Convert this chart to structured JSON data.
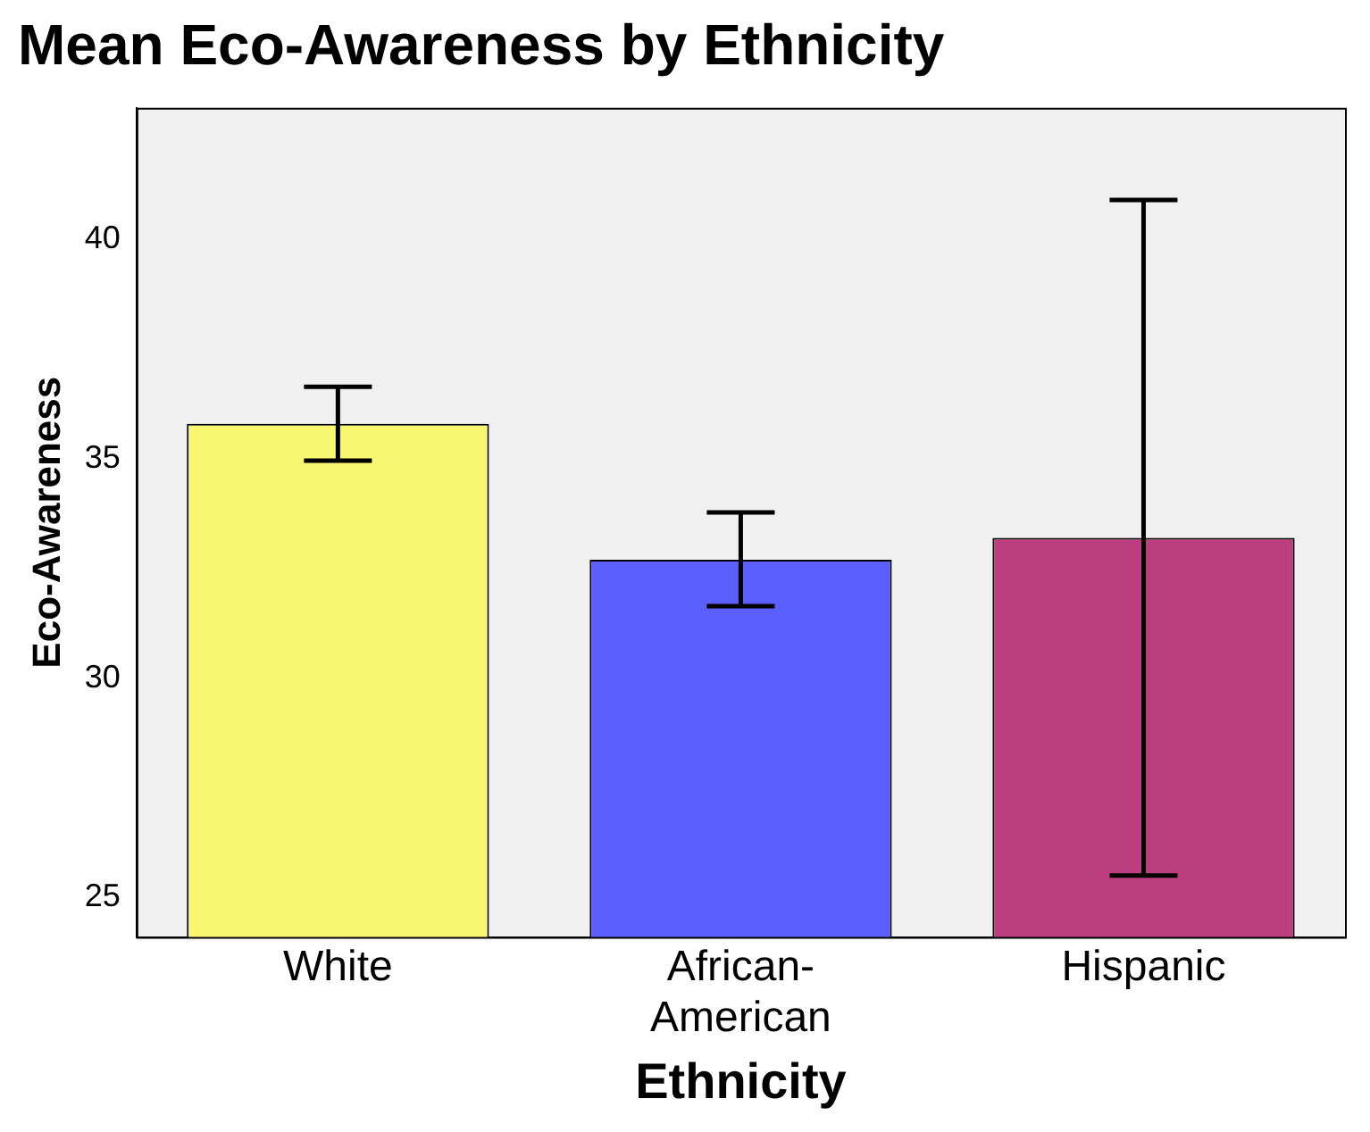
{
  "chart_data": {
    "type": "bar",
    "title": "Mean Eco-Awareness by Ethnicity",
    "xlabel": "Ethnicity",
    "ylabel": "Eco-Awareness",
    "categories": [
      "White",
      "African-American",
      "Hispanic"
    ],
    "values": [
      35.8,
      32.7,
      33.2
    ],
    "colors": [
      "#f9f671",
      "#5b5ffe",
      "#bb3f7e"
    ],
    "errors": [
      [
        34.96,
        36.64
      ],
      [
        31.64,
        33.78
      ],
      [
        25.5,
        40.9
      ]
    ],
    "ylim": [
      24.1,
      43
    ],
    "yticks": [
      25,
      30,
      35,
      40
    ],
    "grid": false,
    "legend": false
  }
}
